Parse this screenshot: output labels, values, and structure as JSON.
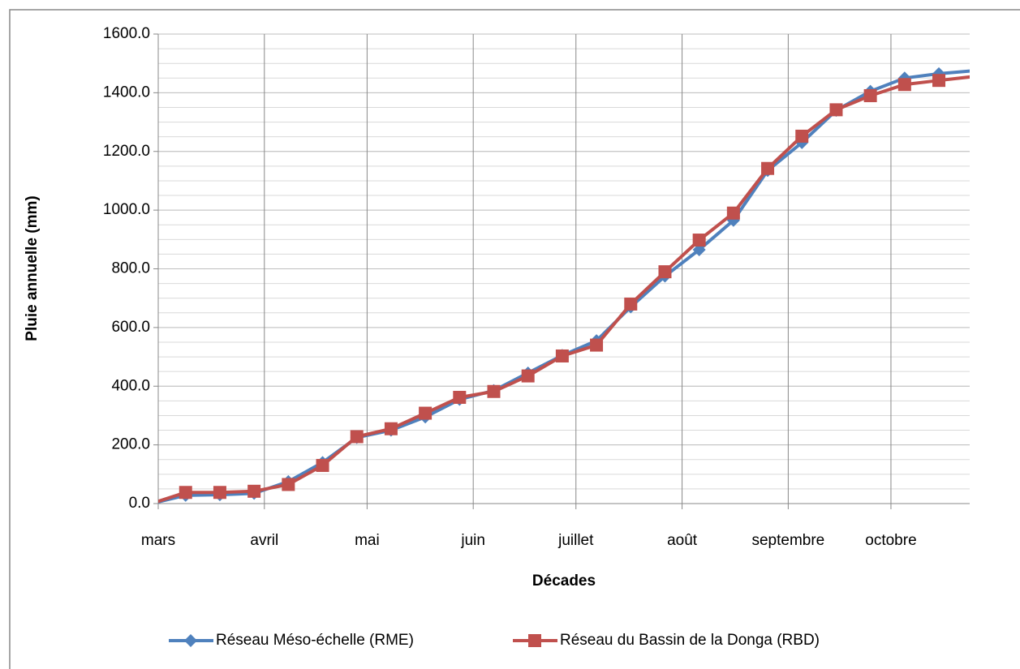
{
  "chart_data": {
    "type": "line",
    "y_label": "Pluie annuelle (mm)",
    "x_label": "Décades",
    "xlim": [
      0,
      237
    ],
    "xticks": [
      {
        "value": 0,
        "label": "mars"
      },
      {
        "value": 31,
        "label": "avril"
      },
      {
        "value": 61,
        "label": "mai"
      },
      {
        "value": 92,
        "label": "juin"
      },
      {
        "value": 122,
        "label": "juillet"
      },
      {
        "value": 153,
        "label": "août"
      },
      {
        "value": 184,
        "label": "septembre"
      },
      {
        "value": 214,
        "label": "octobre"
      }
    ],
    "ylim": [
      0,
      1600
    ],
    "yticks": [
      {
        "value": 0,
        "label": "0.0"
      },
      {
        "value": 200,
        "label": "200.0"
      },
      {
        "value": 400,
        "label": "400.0"
      },
      {
        "value": 600,
        "label": "600.0"
      },
      {
        "value": 800,
        "label": "800.0"
      },
      {
        "value": 1000,
        "label": "1000.0"
      },
      {
        "value": 1200,
        "label": "1200.0"
      },
      {
        "value": 1400,
        "label": "1400.0"
      },
      {
        "value": 1600,
        "label": "1600.0"
      }
    ],
    "grid": true,
    "minor_grid_step": 50,
    "legend": "bottom",
    "x": [
      -2,
      8,
      18,
      28,
      38,
      48,
      58,
      68,
      78,
      88,
      98,
      108,
      118,
      128,
      138,
      148,
      158,
      168,
      178,
      188,
      198,
      208,
      218,
      228,
      238
    ],
    "series": [
      {
        "name": "Réseau Méso-échelle (RME)",
        "color": "#4f81bd",
        "marker": "diamond",
        "values": [
          0,
          28,
          30,
          35,
          75,
          140,
          225,
          250,
          295,
          355,
          385,
          445,
          505,
          555,
          670,
          775,
          865,
          965,
          1135,
          1230,
          1340,
          1405,
          1450,
          1465,
          1475
        ]
      },
      {
        "name": "Réseau du Bassin de la Donga (RBD)",
        "color": "#c0504d",
        "marker": "square",
        "values": [
          0,
          38,
          38,
          42,
          65,
          130,
          228,
          255,
          308,
          362,
          382,
          435,
          503,
          540,
          680,
          790,
          898,
          990,
          1142,
          1252,
          1342,
          1390,
          1428,
          1442,
          1455
        ]
      }
    ]
  }
}
